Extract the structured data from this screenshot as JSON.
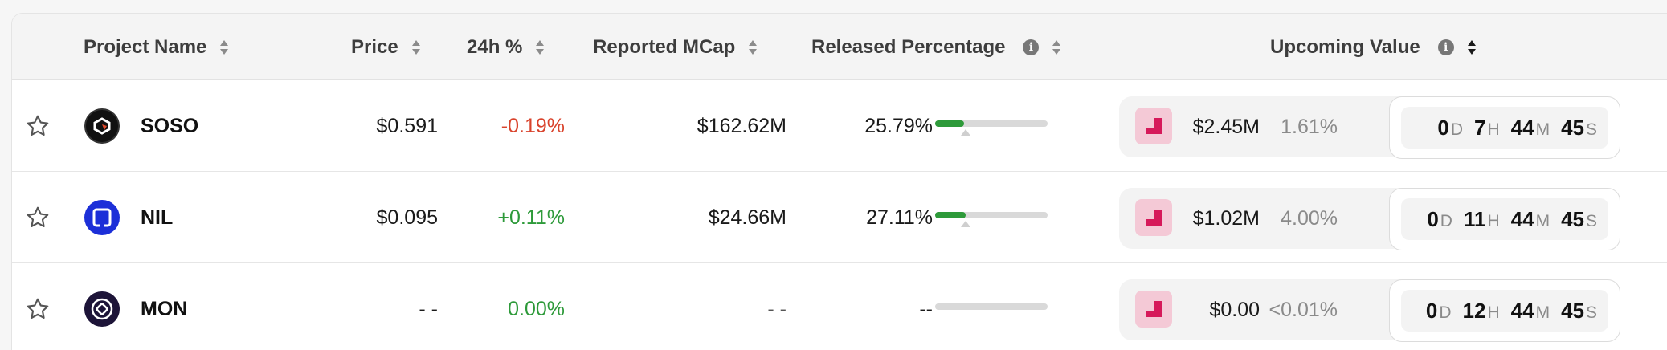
{
  "header": {
    "project_name": "Project Name",
    "price": "Price",
    "change_24h": "24h %",
    "reported_mcap": "Reported MCap",
    "released_percentage": "Released Percentage",
    "upcoming_value": "Upcoming Value",
    "info_glyph": "i"
  },
  "colors": {
    "negative": "#d9432c",
    "positive": "#2e9a3a",
    "progress_fill": "#2e9a3a",
    "unlock_icon_bg": "#f4c9d6",
    "unlock_icon_fg": "#d6195a"
  },
  "rows": [
    {
      "symbol": "SOSO",
      "logo_icon": "soso-logo-icon",
      "price": "$0.591",
      "change_24h": "-0.19%",
      "change_direction": "negative",
      "reported_mcap": "$162.62M",
      "released_percentage": "25.79%",
      "released_fraction": 0.2579,
      "upcoming_amount": "$2.45M",
      "upcoming_percent": "1.61%",
      "countdown": {
        "days": "0",
        "days_unit": "D",
        "hours": "7",
        "hours_unit": "H",
        "minutes": "44",
        "minutes_unit": "M",
        "seconds": "45",
        "seconds_unit": "S"
      }
    },
    {
      "symbol": "NIL",
      "logo_icon": "nil-logo-icon",
      "price": "$0.095",
      "change_24h": "+0.11%",
      "change_direction": "positive",
      "reported_mcap": "$24.66M",
      "released_percentage": "27.11%",
      "released_fraction": 0.2711,
      "upcoming_amount": "$1.02M",
      "upcoming_percent": "4.00%",
      "countdown": {
        "days": "0",
        "days_unit": "D",
        "hours": "11",
        "hours_unit": "H",
        "minutes": "44",
        "minutes_unit": "M",
        "seconds": "45",
        "seconds_unit": "S"
      }
    },
    {
      "symbol": "MON",
      "logo_icon": "mon-logo-icon",
      "price": "- -",
      "change_24h": "0.00%",
      "change_direction": "positive",
      "reported_mcap": "- -",
      "released_percentage": "--",
      "released_fraction": 0,
      "upcoming_amount": "$0.00",
      "upcoming_percent": "<0.01%",
      "countdown": {
        "days": "0",
        "days_unit": "D",
        "hours": "12",
        "hours_unit": "H",
        "minutes": "44",
        "minutes_unit": "M",
        "seconds": "45",
        "seconds_unit": "S"
      }
    }
  ]
}
